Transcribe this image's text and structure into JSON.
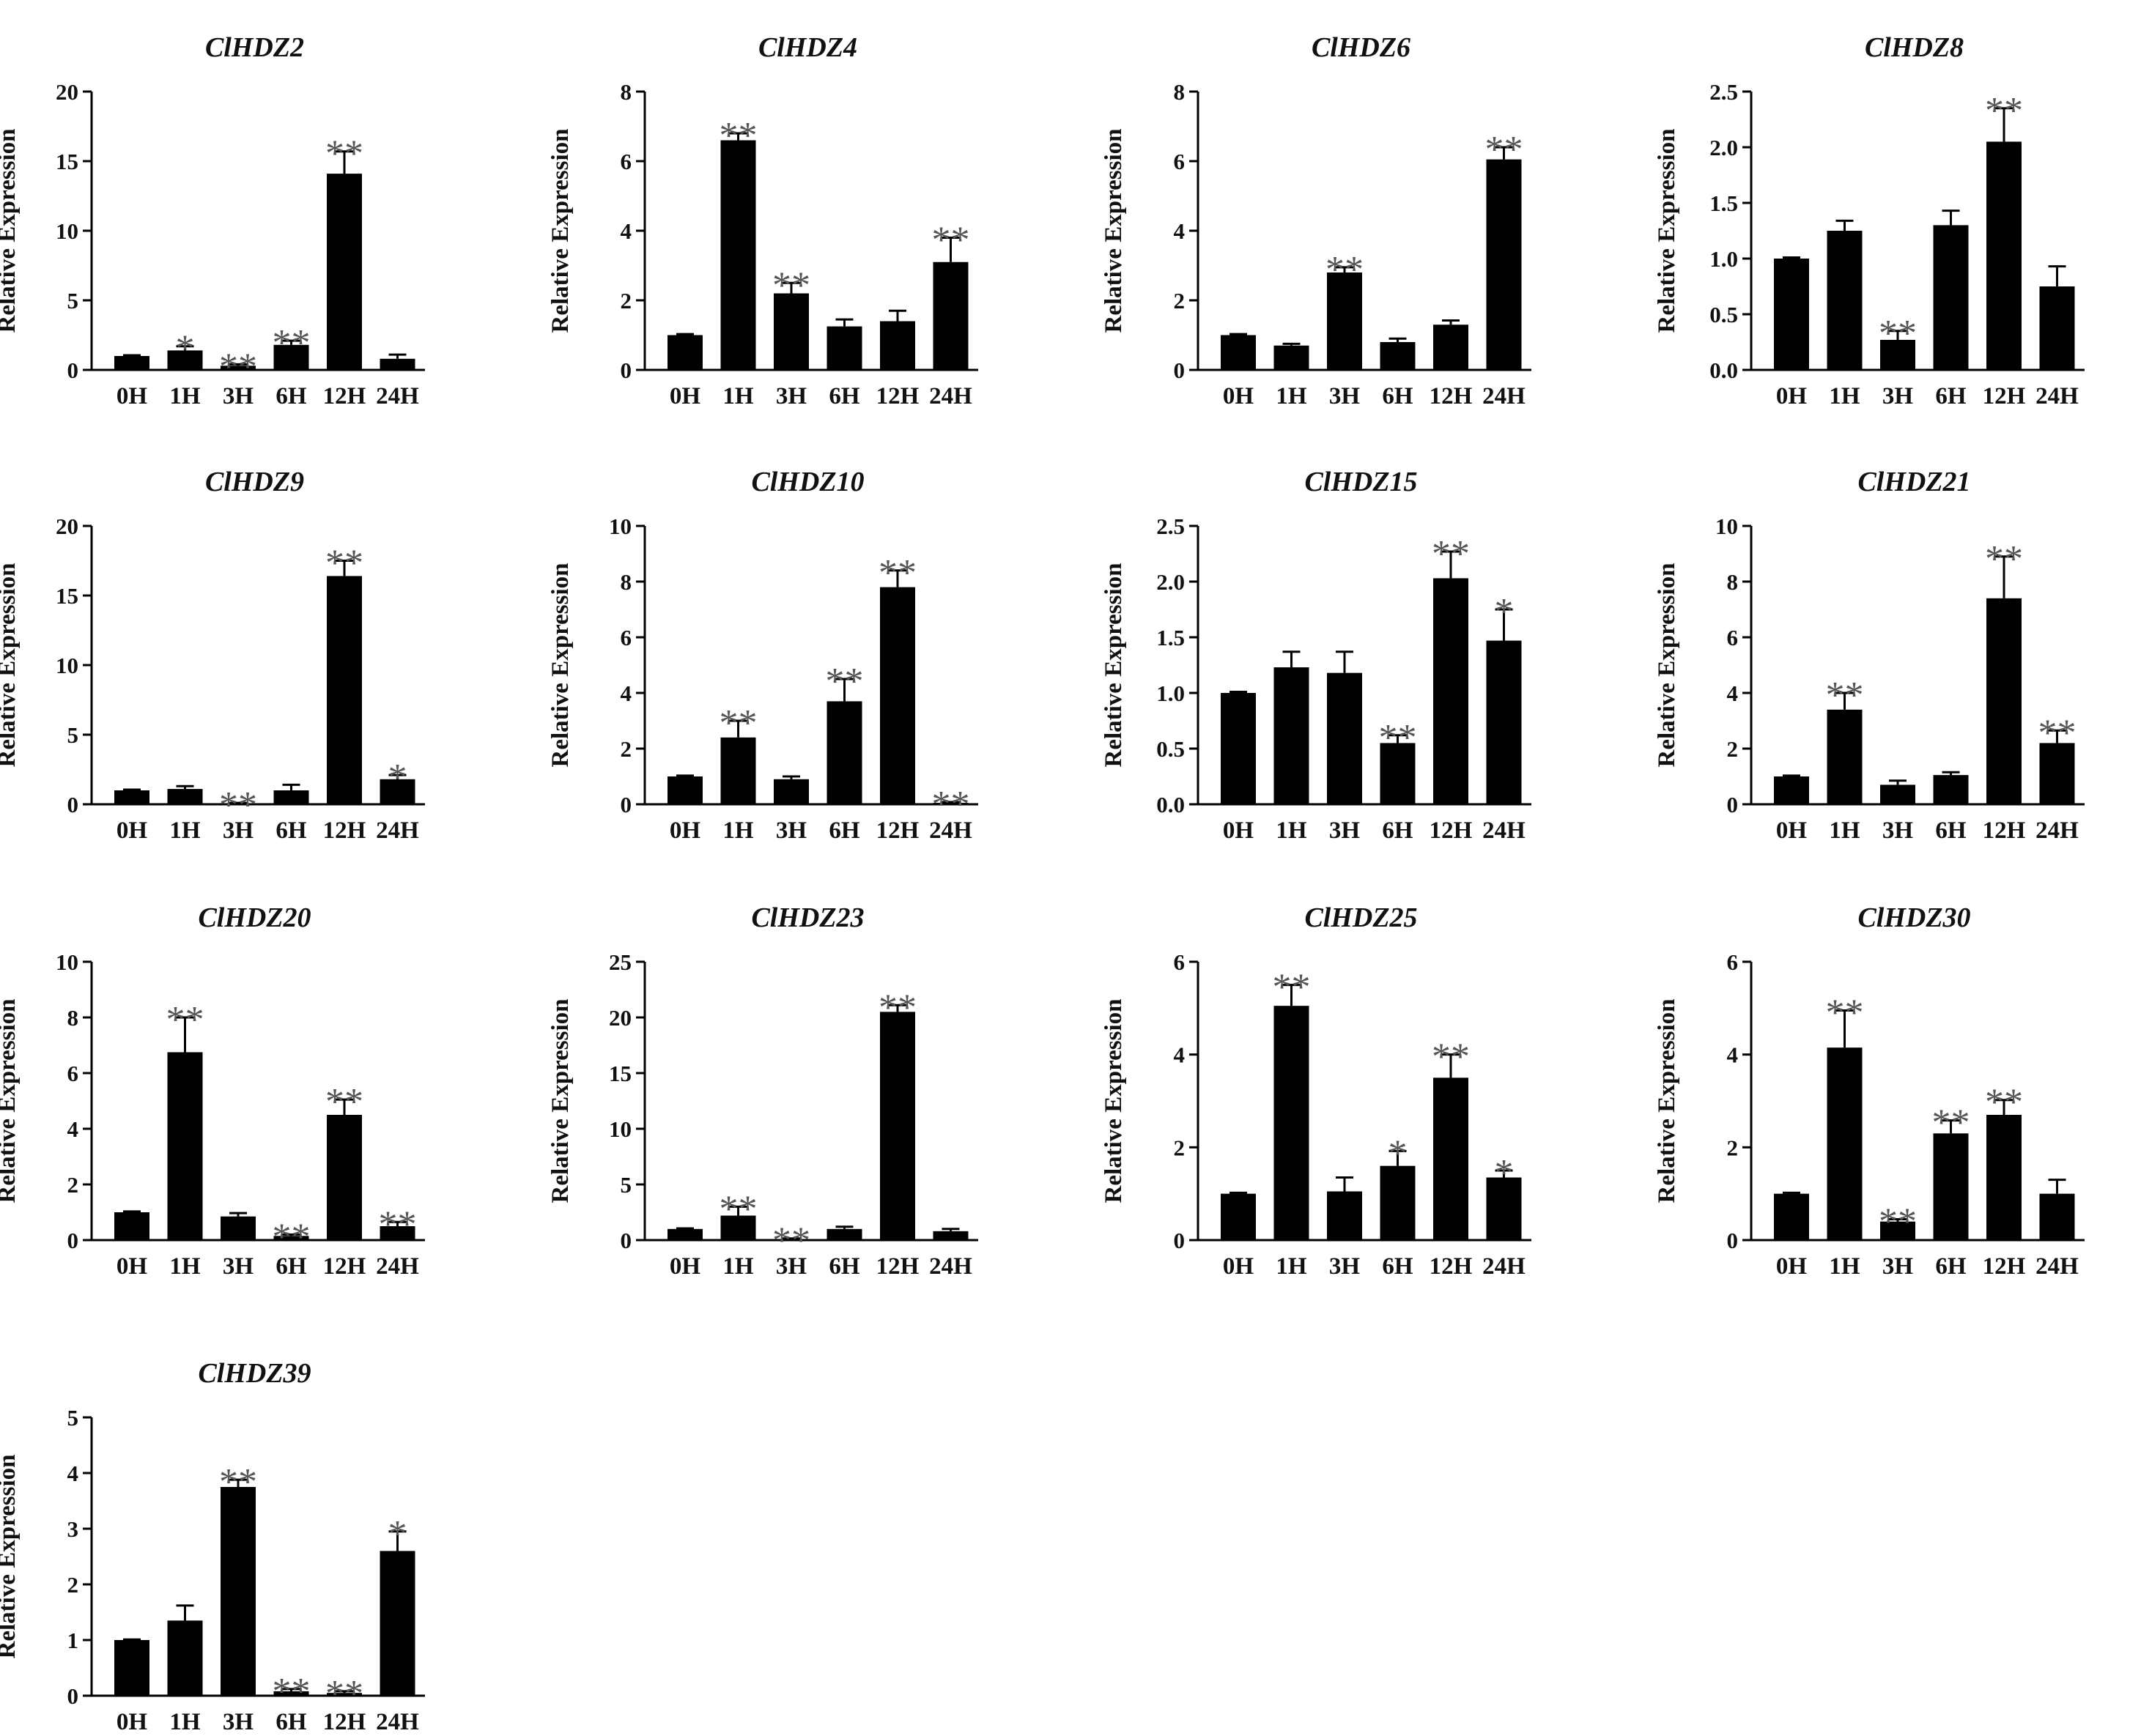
{
  "figure": {
    "type": "small-multiples bar charts",
    "panel_count": 13,
    "colors": {
      "bar": "#000000",
      "axis": "#000000",
      "significance": "#555555",
      "background": "#ffffff"
    }
  },
  "chart_data": [
    {
      "type": "bar",
      "title": "ClHDZ2",
      "xlabel": "",
      "ylabel": "Relative Expression",
      "categories": [
        "0H",
        "1H",
        "3H",
        "6H",
        "12H",
        "24H"
      ],
      "values": [
        1.0,
        1.4,
        0.3,
        1.8,
        14.1,
        0.8
      ],
      "errors": [
        0.05,
        0.3,
        0.1,
        0.3,
        1.6,
        0.3
      ],
      "significance": [
        "",
        "*",
        "**",
        "**",
        "**",
        ""
      ],
      "ylim": [
        0,
        20
      ],
      "yticks": [
        0,
        5,
        10,
        15,
        20
      ],
      "ytick_labels": [
        "0",
        "5",
        "10",
        "15",
        "20"
      ]
    },
    {
      "type": "bar",
      "title": "ClHDZ4",
      "xlabel": "",
      "ylabel": "Relative Expression",
      "categories": [
        "0H",
        "1H",
        "3H",
        "6H",
        "12H",
        "24H"
      ],
      "values": [
        1.0,
        6.6,
        2.2,
        1.25,
        1.4,
        3.1
      ],
      "errors": [
        0.03,
        0.2,
        0.3,
        0.2,
        0.3,
        0.7
      ],
      "significance": [
        "",
        "**",
        "**",
        "",
        "",
        "**"
      ],
      "ylim": [
        0,
        8
      ],
      "yticks": [
        0,
        2,
        4,
        6,
        8
      ],
      "ytick_labels": [
        "0",
        "2",
        "4",
        "6",
        "8"
      ]
    },
    {
      "type": "bar",
      "title": "ClHDZ6",
      "xlabel": "",
      "ylabel": "Relative Expression",
      "categories": [
        "0H",
        "1H",
        "3H",
        "6H",
        "12H",
        "24H"
      ],
      "values": [
        1.0,
        0.7,
        2.8,
        0.8,
        1.3,
        6.05
      ],
      "errors": [
        0.03,
        0.05,
        0.15,
        0.1,
        0.12,
        0.35
      ],
      "significance": [
        "",
        "",
        "**",
        "",
        "",
        "**"
      ],
      "ylim": [
        0,
        8
      ],
      "yticks": [
        0,
        2,
        4,
        6,
        8
      ],
      "ytick_labels": [
        "0",
        "2",
        "4",
        "6",
        "8"
      ]
    },
    {
      "type": "bar",
      "title": "ClHDZ8",
      "xlabel": "",
      "ylabel": "Relative Expression",
      "categories": [
        "0H",
        "1H",
        "3H",
        "6H",
        "12H",
        "24H"
      ],
      "values": [
        1.0,
        1.25,
        0.27,
        1.3,
        2.05,
        0.75
      ],
      "errors": [
        0.01,
        0.09,
        0.08,
        0.13,
        0.3,
        0.18
      ],
      "significance": [
        "",
        "",
        "**",
        "",
        "**",
        ""
      ],
      "ylim": [
        0,
        2.5
      ],
      "yticks": [
        0,
        0.5,
        1.0,
        1.5,
        2.0,
        2.5
      ],
      "ytick_labels": [
        "0.0",
        "0.5",
        "1.0",
        "1.5",
        "2.0",
        "2.5"
      ]
    },
    {
      "type": "bar",
      "title": "ClHDZ9",
      "xlabel": "",
      "ylabel": "Relative Expression",
      "categories": [
        "0H",
        "1H",
        "3H",
        "6H",
        "12H",
        "24H"
      ],
      "values": [
        1.0,
        1.1,
        0.05,
        1.0,
        16.4,
        1.8
      ],
      "errors": [
        0.05,
        0.2,
        0.05,
        0.4,
        1.1,
        0.3
      ],
      "significance": [
        "",
        "",
        "**",
        "",
        "**",
        "*"
      ],
      "ylim": [
        0,
        20
      ],
      "yticks": [
        0,
        5,
        10,
        15,
        20
      ],
      "ytick_labels": [
        "0",
        "5",
        "10",
        "15",
        "20"
      ]
    },
    {
      "type": "bar",
      "title": "ClHDZ10",
      "xlabel": "",
      "ylabel": "Relative Expression",
      "categories": [
        "0H",
        "1H",
        "3H",
        "6H",
        "12H",
        "24H"
      ],
      "values": [
        1.0,
        2.4,
        0.9,
        3.7,
        7.8,
        0.05
      ],
      "errors": [
        0.03,
        0.6,
        0.1,
        0.8,
        0.6,
        0.03
      ],
      "significance": [
        "",
        "**",
        "",
        "**",
        "**",
        "**"
      ],
      "ylim": [
        0,
        10
      ],
      "yticks": [
        0,
        2,
        4,
        6,
        8,
        10
      ],
      "ytick_labels": [
        "0",
        "2",
        "4",
        "6",
        "8",
        "10"
      ]
    },
    {
      "type": "bar",
      "title": "ClHDZ15",
      "xlabel": "",
      "ylabel": "Relative Expression",
      "categories": [
        "0H",
        "1H",
        "3H",
        "6H",
        "12H",
        "24H"
      ],
      "values": [
        1.0,
        1.23,
        1.18,
        0.55,
        2.03,
        1.47
      ],
      "errors": [
        0.01,
        0.14,
        0.19,
        0.07,
        0.24,
        0.28
      ],
      "significance": [
        "",
        "",
        "",
        "**",
        "**",
        "*"
      ],
      "ylim": [
        0,
        2.5
      ],
      "yticks": [
        0,
        0.5,
        1.0,
        1.5,
        2.0,
        2.5
      ],
      "ytick_labels": [
        "0.0",
        "0.5",
        "1.0",
        "1.5",
        "2.0",
        "2.5"
      ]
    },
    {
      "type": "bar",
      "title": "ClHDZ21",
      "xlabel": "",
      "ylabel": "Relative Expression",
      "categories": [
        "0H",
        "1H",
        "3H",
        "6H",
        "12H",
        "24H"
      ],
      "values": [
        1.0,
        3.4,
        0.7,
        1.05,
        7.4,
        2.2
      ],
      "errors": [
        0.03,
        0.6,
        0.15,
        0.1,
        1.5,
        0.45
      ],
      "significance": [
        "",
        "**",
        "",
        "",
        "**",
        "**"
      ],
      "ylim": [
        0,
        10
      ],
      "yticks": [
        0,
        2,
        4,
        6,
        8,
        10
      ],
      "ytick_labels": [
        "0",
        "2",
        "4",
        "6",
        "8",
        "10"
      ]
    },
    {
      "type": "bar",
      "title": "ClHDZ20",
      "xlabel": "",
      "ylabel": "Relative Expression",
      "categories": [
        "0H",
        "1H",
        "3H",
        "6H",
        "12H",
        "24H"
      ],
      "values": [
        1.0,
        6.75,
        0.85,
        0.15,
        4.5,
        0.5
      ],
      "errors": [
        0.03,
        1.25,
        0.12,
        0.05,
        0.55,
        0.15
      ],
      "significance": [
        "",
        "**",
        "",
        "**",
        "**",
        "**"
      ],
      "ylim": [
        0,
        10
      ],
      "yticks": [
        0,
        2,
        4,
        6,
        8,
        10
      ],
      "ytick_labels": [
        "0",
        "2",
        "4",
        "6",
        "8",
        "10"
      ]
    },
    {
      "type": "bar",
      "title": "ClHDZ23",
      "xlabel": "",
      "ylabel": "Relative Expression",
      "categories": [
        "0H",
        "1H",
        "3H",
        "6H",
        "12H",
        "24H"
      ],
      "values": [
        1.0,
        2.2,
        0.1,
        1.0,
        20.5,
        0.8
      ],
      "errors": [
        0.05,
        0.8,
        0.05,
        0.2,
        0.6,
        0.2
      ],
      "significance": [
        "",
        "**",
        "**",
        "",
        "**",
        ""
      ],
      "ylim": [
        0,
        25
      ],
      "yticks": [
        0,
        5,
        10,
        15,
        20,
        25
      ],
      "ytick_labels": [
        "0",
        "5",
        "10",
        "15",
        "20",
        "25"
      ]
    },
    {
      "type": "bar",
      "title": "ClHDZ25",
      "xlabel": "",
      "ylabel": "Relative Expression",
      "categories": [
        "0H",
        "1H",
        "3H",
        "6H",
        "12H",
        "24H"
      ],
      "values": [
        1.0,
        5.05,
        1.05,
        1.6,
        3.5,
        1.35
      ],
      "errors": [
        0.02,
        0.45,
        0.3,
        0.32,
        0.5,
        0.15
      ],
      "significance": [
        "",
        "**",
        "",
        "*",
        "**",
        "*"
      ],
      "ylim": [
        0,
        6
      ],
      "yticks": [
        0,
        2,
        4,
        6
      ],
      "ytick_labels": [
        "0",
        "2",
        "4",
        "6"
      ]
    },
    {
      "type": "bar",
      "title": "ClHDZ30",
      "xlabel": "",
      "ylabel": "Relative Expression",
      "categories": [
        "0H",
        "1H",
        "3H",
        "6H",
        "12H",
        "24H"
      ],
      "values": [
        1.0,
        4.15,
        0.4,
        2.3,
        2.7,
        1.0
      ],
      "errors": [
        0.02,
        0.8,
        0.05,
        0.28,
        0.32,
        0.3
      ],
      "significance": [
        "",
        "**",
        "**",
        "**",
        "**",
        ""
      ],
      "ylim": [
        0,
        6
      ],
      "yticks": [
        0,
        2,
        4,
        6
      ],
      "ytick_labels": [
        "0",
        "2",
        "4",
        "6"
      ]
    },
    {
      "type": "bar",
      "title": "ClHDZ39",
      "xlabel": "",
      "ylabel": "Relative Expression",
      "categories": [
        "0H",
        "1H",
        "3H",
        "6H",
        "12H",
        "24H"
      ],
      "values": [
        1.0,
        1.35,
        3.75,
        0.08,
        0.05,
        2.6
      ],
      "errors": [
        0.01,
        0.27,
        0.13,
        0.04,
        0.03,
        0.35
      ],
      "significance": [
        "",
        "",
        "**",
        "**",
        "**",
        "*"
      ],
      "ylim": [
        0,
        5
      ],
      "yticks": [
        0,
        1,
        2,
        3,
        4,
        5
      ],
      "ytick_labels": [
        "0",
        "1",
        "2",
        "3",
        "4",
        "5"
      ]
    }
  ]
}
